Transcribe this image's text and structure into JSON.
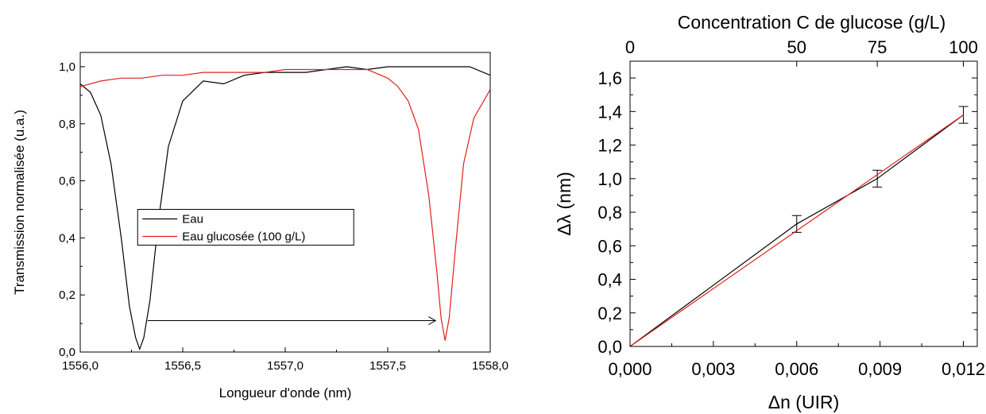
{
  "chart_data": [
    {
      "type": "line",
      "xlabel": "Longueur d'onde (nm)",
      "ylabel": "Transmission normalisée (u.a.)",
      "xlim": [
        1556.0,
        1558.0
      ],
      "ylim": [
        0.0,
        1.05
      ],
      "x_ticks": [
        "1556,0",
        "1556,5",
        "1557,0",
        "1557,5",
        "1558,0"
      ],
      "y_ticks": [
        "0,0",
        "0,2",
        "0,4",
        "0,6",
        "0,8",
        "1,0"
      ],
      "grid": false,
      "legend_position": "center",
      "annotation": "arrow from the Eau dip to the Eau glucosée dip",
      "series": [
        {
          "name": "Eau",
          "color": "#000000",
          "dip_center": 1556.29,
          "dip_min": 0.01,
          "x": [
            1556.0,
            1556.05,
            1556.1,
            1556.15,
            1556.2,
            1556.24,
            1556.27,
            1556.29,
            1556.31,
            1556.34,
            1556.38,
            1556.43,
            1556.5,
            1556.6,
            1556.7,
            1556.8,
            1556.9,
            1557.0,
            1557.1,
            1557.2,
            1557.3,
            1557.4,
            1557.5,
            1557.6,
            1557.7,
            1557.8,
            1557.9,
            1558.0
          ],
          "y": [
            0.94,
            0.91,
            0.83,
            0.66,
            0.4,
            0.16,
            0.05,
            0.01,
            0.05,
            0.18,
            0.45,
            0.72,
            0.88,
            0.95,
            0.94,
            0.97,
            0.98,
            0.98,
            0.98,
            0.99,
            1.0,
            0.99,
            1.0,
            1.0,
            1.0,
            1.0,
            1.0,
            0.97
          ]
        },
        {
          "name": "Eau glucosée (100 g/L)",
          "color": "#e0201c",
          "dip_center": 1557.78,
          "dip_min": 0.04,
          "x": [
            1556.0,
            1556.1,
            1556.2,
            1556.3,
            1556.4,
            1556.5,
            1556.6,
            1556.7,
            1556.8,
            1556.9,
            1557.0,
            1557.1,
            1557.2,
            1557.3,
            1557.4,
            1557.5,
            1557.55,
            1557.6,
            1557.65,
            1557.7,
            1557.74,
            1557.76,
            1557.78,
            1557.8,
            1557.83,
            1557.87,
            1557.92,
            1558.0
          ],
          "y": [
            0.93,
            0.95,
            0.96,
            0.96,
            0.97,
            0.97,
            0.98,
            0.98,
            0.98,
            0.98,
            0.99,
            0.99,
            0.99,
            0.99,
            0.99,
            0.96,
            0.93,
            0.88,
            0.78,
            0.55,
            0.28,
            0.12,
            0.04,
            0.12,
            0.36,
            0.66,
            0.82,
            0.92
          ]
        }
      ]
    },
    {
      "type": "line",
      "xlabel": "Δn (UIR)",
      "ylabel": "Δλ (nm)",
      "x2label": "Concentration C de glucose (g/L)",
      "xlim": [
        0.0,
        0.0125
      ],
      "ylim": [
        0.0,
        1.7
      ],
      "x_ticks": [
        "0,000",
        "0,003",
        "0,006",
        "0,009",
        "0,012"
      ],
      "y_ticks": [
        "0,0",
        "0,2",
        "0,4",
        "0,6",
        "0,8",
        "1,0",
        "1,2",
        "1,4",
        "1,6"
      ],
      "x2_ticks": [
        "0",
        "50",
        "75",
        "100"
      ],
      "grid": false,
      "series": [
        {
          "kind": "data",
          "color": "#000000",
          "x": [
            0.0,
            0.006,
            0.0089,
            0.012
          ],
          "y": [
            0.0,
            0.73,
            1.0,
            1.38
          ],
          "error": [
            0.0,
            0.05,
            0.05,
            0.05
          ]
        },
        {
          "kind": "fit",
          "color": "#e0201c",
          "x": [
            0.0,
            0.012
          ],
          "y": [
            0.0,
            1.38
          ]
        }
      ]
    }
  ]
}
